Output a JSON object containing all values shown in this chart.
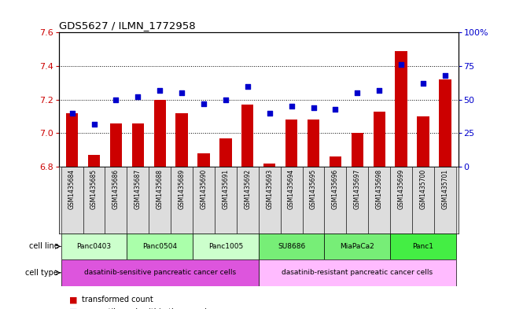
{
  "title": "GDS5627 / ILMN_1772958",
  "samples": [
    "GSM1435684",
    "GSM1435685",
    "GSM1435686",
    "GSM1435687",
    "GSM1435688",
    "GSM1435689",
    "GSM1435690",
    "GSM1435691",
    "GSM1435692",
    "GSM1435693",
    "GSM1435694",
    "GSM1435695",
    "GSM1435696",
    "GSM1435697",
    "GSM1435698",
    "GSM1435699",
    "GSM1435700",
    "GSM1435701"
  ],
  "bar_values": [
    7.12,
    6.87,
    7.06,
    7.06,
    7.2,
    7.12,
    6.88,
    6.97,
    7.17,
    6.82,
    7.08,
    7.08,
    6.86,
    7.0,
    7.13,
    7.49,
    7.1,
    7.32
  ],
  "dot_values": [
    40,
    32,
    50,
    52,
    57,
    55,
    47,
    50,
    60,
    40,
    45,
    44,
    43,
    55,
    57,
    76,
    62,
    68
  ],
  "ylim_left": [
    6.8,
    7.6
  ],
  "ylim_right": [
    0,
    100
  ],
  "yticks_left": [
    6.8,
    7.0,
    7.2,
    7.4,
    7.6
  ],
  "yticks_right": [
    0,
    25,
    50,
    75,
    100
  ],
  "ytick_labels_right": [
    "0",
    "25",
    "50",
    "75",
    "100%"
  ],
  "grid_yticks": [
    7.0,
    7.2,
    7.4
  ],
  "bar_color": "#cc0000",
  "dot_color": "#0000cc",
  "cell_lines": [
    {
      "label": "Panc0403",
      "start": 0,
      "end": 3,
      "color": "#ccffcc"
    },
    {
      "label": "Panc0504",
      "start": 3,
      "end": 6,
      "color": "#aaffaa"
    },
    {
      "label": "Panc1005",
      "start": 6,
      "end": 9,
      "color": "#ccffcc"
    },
    {
      "label": "SU8686",
      "start": 9,
      "end": 12,
      "color": "#77ee77"
    },
    {
      "label": "MiaPaCa2",
      "start": 12,
      "end": 15,
      "color": "#77ee77"
    },
    {
      "label": "Panc1",
      "start": 15,
      "end": 18,
      "color": "#44ee44"
    }
  ],
  "cell_types": [
    {
      "label": "dasatinib-sensitive pancreatic cancer cells",
      "start": 0,
      "end": 9,
      "color": "#dd55dd"
    },
    {
      "label": "dasatinib-resistant pancreatic cancer cells",
      "start": 9,
      "end": 18,
      "color": "#ffbbff"
    }
  ],
  "bg_color": "#ffffff",
  "bar_color_legend": "#cc0000",
  "dot_color_legend": "#0000cc"
}
